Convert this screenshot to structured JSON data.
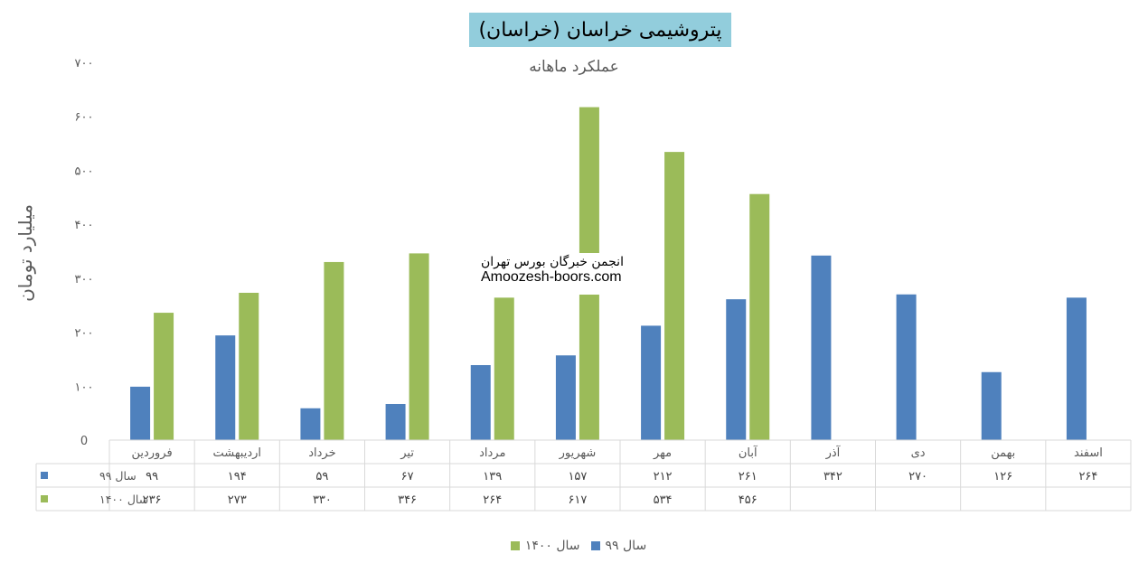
{
  "chart_data": {
    "type": "bar",
    "title": "پتروشیمی خراسان (خراسان)",
    "subtitle": "عملکرد ماهانه",
    "ylabel": "میلیارد تومان",
    "ylim": [
      0,
      700
    ],
    "ytick_labels": [
      "0",
      "۱۰۰",
      "۲۰۰",
      "۳۰۰",
      "۴۰۰",
      "۵۰۰",
      "۶۰۰",
      "۷۰۰"
    ],
    "yticks": [
      0,
      100,
      200,
      300,
      400,
      500,
      600,
      700
    ],
    "categories": [
      "فروردین",
      "اردیبهشت",
      "خرداد",
      "تیر",
      "مرداد",
      "شهریور",
      "مهر",
      "آبان",
      "آذر",
      "دی",
      "بهمن",
      "اسفند"
    ],
    "series": [
      {
        "name": "سال ۹۹",
        "color": "#4f81bd",
        "values": [
          99,
          194,
          59,
          67,
          139,
          157,
          212,
          261,
          342,
          270,
          126,
          264
        ],
        "labels": [
          "۹۹",
          "۱۹۴",
          "۵۹",
          "۶۷",
          "۱۳۹",
          "۱۵۷",
          "۲۱۲",
          "۲۶۱",
          "۳۴۲",
          "۲۷۰",
          "۱۲۶",
          "۲۶۴"
        ]
      },
      {
        "name": "سال ۱۴۰۰",
        "color": "#9bbb59",
        "values": [
          236,
          273,
          330,
          346,
          264,
          617,
          534,
          456,
          null,
          null,
          null,
          null
        ],
        "labels": [
          "۲۳۶",
          "۲۷۳",
          "۳۳۰",
          "۳۴۶",
          "۲۶۴",
          "۶۱۷",
          "۵۳۴",
          "۴۵۶",
          "",
          "",
          "",
          ""
        ]
      }
    ],
    "grid": false,
    "legend": "bottom",
    "data_table": true
  },
  "watermark": {
    "line1": "انجمن خبرگان بورس تهران",
    "line2": "Amoozesh-boors.com"
  }
}
